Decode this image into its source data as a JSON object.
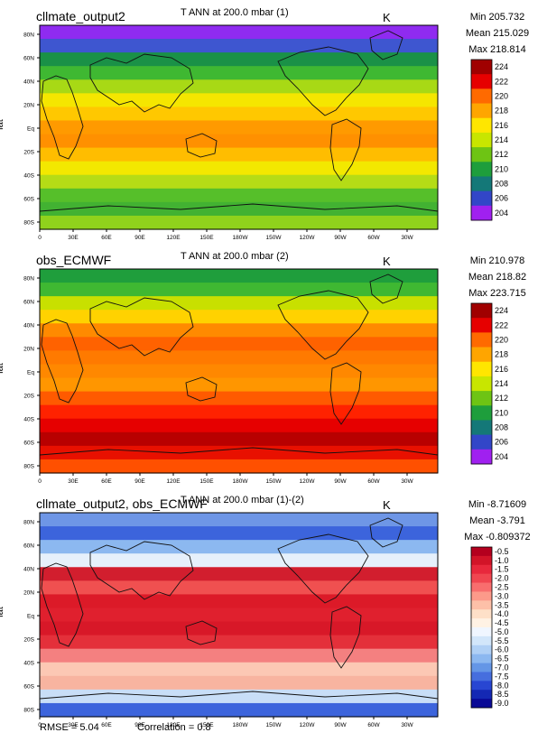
{
  "panels": [
    {
      "title": "cllmate_output2",
      "var_title": "T ANN at 200.0 mbar (1)",
      "units": "K",
      "stats": {
        "min": "Min 205.732",
        "mean": "Mean 215.029",
        "max": "Max 218.814"
      },
      "ylabel": "lat",
      "legend": {
        "labels": [
          "224",
          "222",
          "220",
          "218",
          "216",
          "214",
          "212",
          "210",
          "208",
          "206",
          "204"
        ],
        "colors": [
          "#a00000",
          "#e60000",
          "#ff6a00",
          "#ffa500",
          "#ffe600",
          "#c8e600",
          "#6ec414",
          "#1e9e3c",
          "#147878",
          "#3246c8",
          "#a020f0"
        ]
      },
      "bands": [
        "#8f2bf0",
        "#3e56d0",
        "#1a9147",
        "#3fb832",
        "#a8d915",
        "#f5e600",
        "#ffc800",
        "#ff9a00",
        "#ff9000",
        "#ffbd00",
        "#f3e800",
        "#b5dc16",
        "#56bf2a",
        "#42b232",
        "#90d21c"
      ]
    },
    {
      "title": "obs_ECMWF",
      "var_title": "T ANN at 200.0 mbar (2)",
      "units": "K",
      "stats": {
        "min": "Min 210.978",
        "mean": "Mean 218.82",
        "max": "Max 223.715"
      },
      "ylabel": "lat",
      "legend": {
        "labels": [
          "224",
          "222",
          "220",
          "218",
          "216",
          "214",
          "212",
          "210",
          "208",
          "206",
          "204"
        ],
        "colors": [
          "#a00000",
          "#e60000",
          "#ff6a00",
          "#ffa500",
          "#ffe600",
          "#c8e600",
          "#6ec414",
          "#1e9e3c",
          "#147878",
          "#3246c8",
          "#a020f0"
        ]
      },
      "bands": [
        "#1f9e3c",
        "#3fb832",
        "#c8e000",
        "#ffd200",
        "#ff8a00",
        "#ff6200",
        "#ff7a00",
        "#ff8800",
        "#ff9600",
        "#ff5a00",
        "#ff2200",
        "#e60000",
        "#b80000",
        "#e81000",
        "#ff5000"
      ]
    },
    {
      "title": "cllmate_output2, obs_ECMWF",
      "var_title": "T ANN at 200.0 mbar (1)-(2)",
      "units": "K",
      "stats": {
        "min": "Min -8.71609",
        "mean": "Mean -3.791",
        "max": "Max -0.809372"
      },
      "ylabel": "lat",
      "legend": {
        "labels": [
          "-0.5",
          "-1.0",
          "-1.5",
          "-2.0",
          "-2.5",
          "-3.0",
          "-3.5",
          "-4.0",
          "-4.5",
          "-5.0",
          "-5.5",
          "-6.0",
          "-6.5",
          "-7.0",
          "-7.5",
          "-8.0",
          "-8.5",
          "-9.0"
        ],
        "colors": [
          "#b4001e",
          "#d21428",
          "#e8283c",
          "#f04650",
          "#f86e6e",
          "#fc9a8a",
          "#fdc0a8",
          "#fee0c8",
          "#fff2e4",
          "#f0f6ff",
          "#d2e6fa",
          "#b0d0f5",
          "#8cb8f0",
          "#6496e6",
          "#466ede",
          "#2846d2",
          "#1428b4",
          "#0a0a96"
        ]
      },
      "bands": [
        "#6e96e6",
        "#3c64dc",
        "#8cb8f0",
        "#e6f0fb",
        "#d21e2e",
        "#f05050",
        "#dc1a28",
        "#e0202e",
        "#d81828",
        "#e4303a",
        "#f48080",
        "#fcc8b4",
        "#f8b4a0",
        "#c8def7",
        "#3c64dc"
      ]
    }
  ],
  "lat_ticks": [
    "80N",
    "60N",
    "40N",
    "20N",
    "Eq",
    "20S",
    "40S",
    "60S",
    "80S"
  ],
  "lon_ticks": [
    "0",
    "30E",
    "60E",
    "90E",
    "120E",
    "150E",
    "180W",
    "150W",
    "120W",
    "90W",
    "60W",
    "30W"
  ],
  "footer": {
    "rmse": "RMSE = 5.04",
    "correlation": "Correlation = 0.8"
  }
}
